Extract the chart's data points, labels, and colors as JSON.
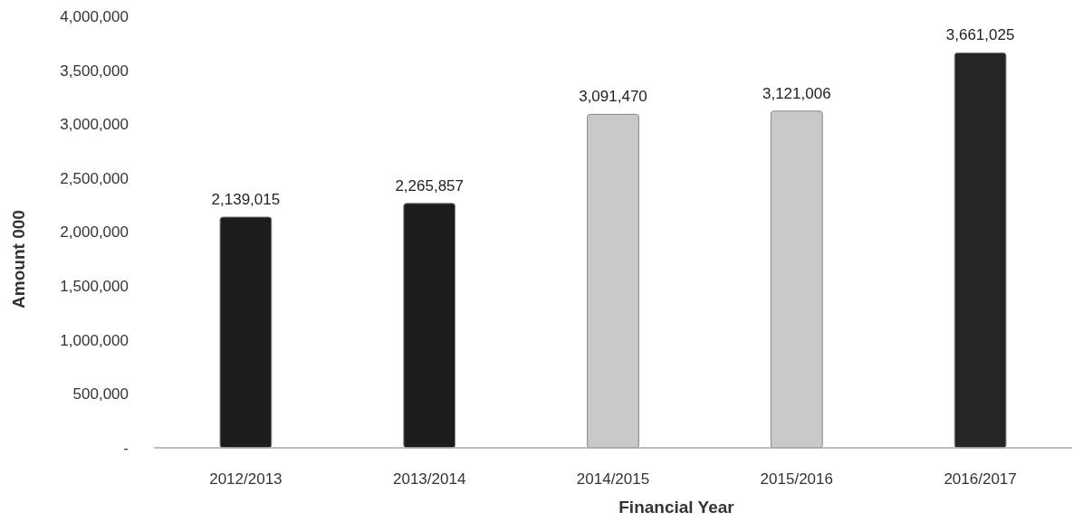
{
  "chart_data": {
    "type": "bar",
    "xlabel": "Financial Year",
    "ylabel": "Amount 000",
    "categories": [
      "2012/2013",
      "2013/2014",
      "2014/2015",
      "2015/2016",
      "2016/2017"
    ],
    "values": [
      2139015,
      2265857,
      3091470,
      3121006,
      3661025
    ],
    "colors": [
      "#1c1c1c",
      "#1c1c1c",
      "#c9c9c9",
      "#c9c9c9",
      "#262626"
    ],
    "ylim": [
      0,
      4000000
    ],
    "yticks": [
      {
        "value": 0,
        "label": "-"
      },
      {
        "value": 500000,
        "label": "500,000"
      },
      {
        "value": 1000000,
        "label": "1,000,000"
      },
      {
        "value": 1500000,
        "label": "1,500,000"
      },
      {
        "value": 2000000,
        "label": "2,000,000"
      },
      {
        "value": 2500000,
        "label": "2,500,000"
      },
      {
        "value": 3000000,
        "label": "3,000,000"
      },
      {
        "value": 3500000,
        "label": "3,500,000"
      },
      {
        "value": 4000000,
        "label": "4,000,000"
      }
    ],
    "value_labels": [
      "2,139,015",
      "2,265,857",
      "3,091,470",
      "3,121,006",
      "3,661,025"
    ],
    "grid": false
  }
}
